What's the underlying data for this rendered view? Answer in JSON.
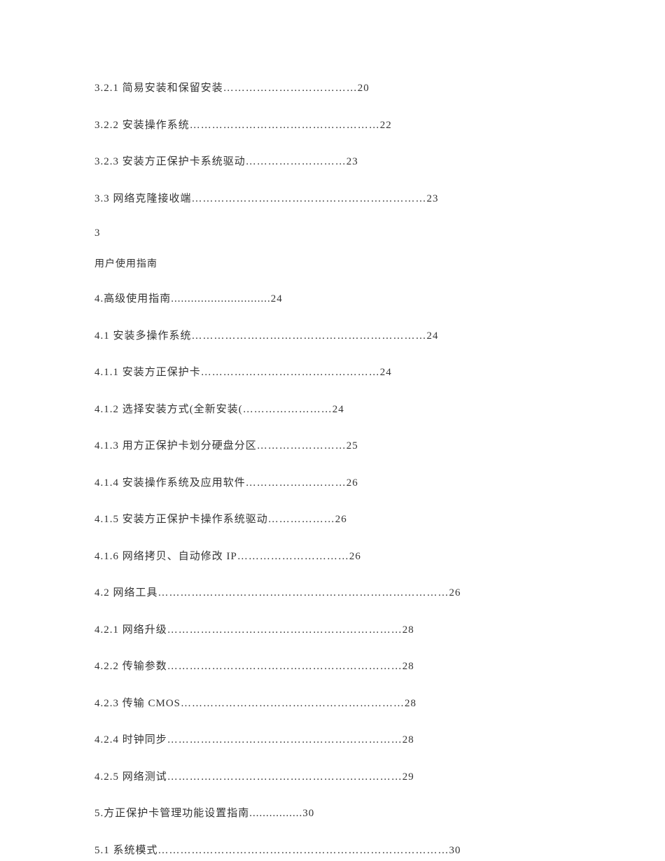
{
  "entries": [
    {
      "type": "toc",
      "text": "3.2.1 简易安装和保留安装………………………………20"
    },
    {
      "type": "toc",
      "text": "3.2.2 安装操作系统……………………………………………22"
    },
    {
      "type": "toc",
      "text": "3.2.3 安装方正保护卡系统驱动………………………23"
    },
    {
      "type": "toc",
      "text": "3.3 网络克隆接收端………………………………………………………23"
    },
    {
      "type": "marker",
      "text": "3"
    },
    {
      "type": "title",
      "text": "用户使用指南"
    },
    {
      "type": "toc",
      "text": "4.高级使用指南..............................24"
    },
    {
      "type": "toc",
      "text": "4.1 安装多操作系统………………………………………………………24"
    },
    {
      "type": "toc",
      "text": "4.1.1 安装方正保护卡…………………………………………24"
    },
    {
      "type": "toc",
      "text": "4.1.2 选择安装方式(全新安装(……………………24"
    },
    {
      "type": "toc",
      "text": "4.1.3 用方正保护卡划分硬盘分区……………………25"
    },
    {
      "type": "toc",
      "text": "4.1.4 安装操作系统及应用软件………………………26"
    },
    {
      "type": "toc",
      "text": "4.1.5 安装方正保护卡操作系统驱动………………26"
    },
    {
      "type": "toc",
      "text": "4.1.6 网络拷贝、自动修改 IP…………………………26"
    },
    {
      "type": "toc",
      "text": "4.2 网络工具……………………………………………………………………26"
    },
    {
      "type": "toc",
      "text": "4.2.1 网络升级………………………………………………………28"
    },
    {
      "type": "toc",
      "text": "4.2.2 传输参数………………………………………………………28"
    },
    {
      "type": "toc",
      "text": "4.2.3 传输 CMOS……………………………………………………28"
    },
    {
      "type": "toc",
      "text": "4.2.4 时钟同步………………………………………………………28"
    },
    {
      "type": "toc",
      "text": "4.2.5 网络测试………………………………………………………29"
    },
    {
      "type": "toc",
      "text": "5.方正保护卡管理功能设置指南................30"
    },
    {
      "type": "toc",
      "text": "5.1 系统模式……………………………………………………………………30"
    }
  ]
}
